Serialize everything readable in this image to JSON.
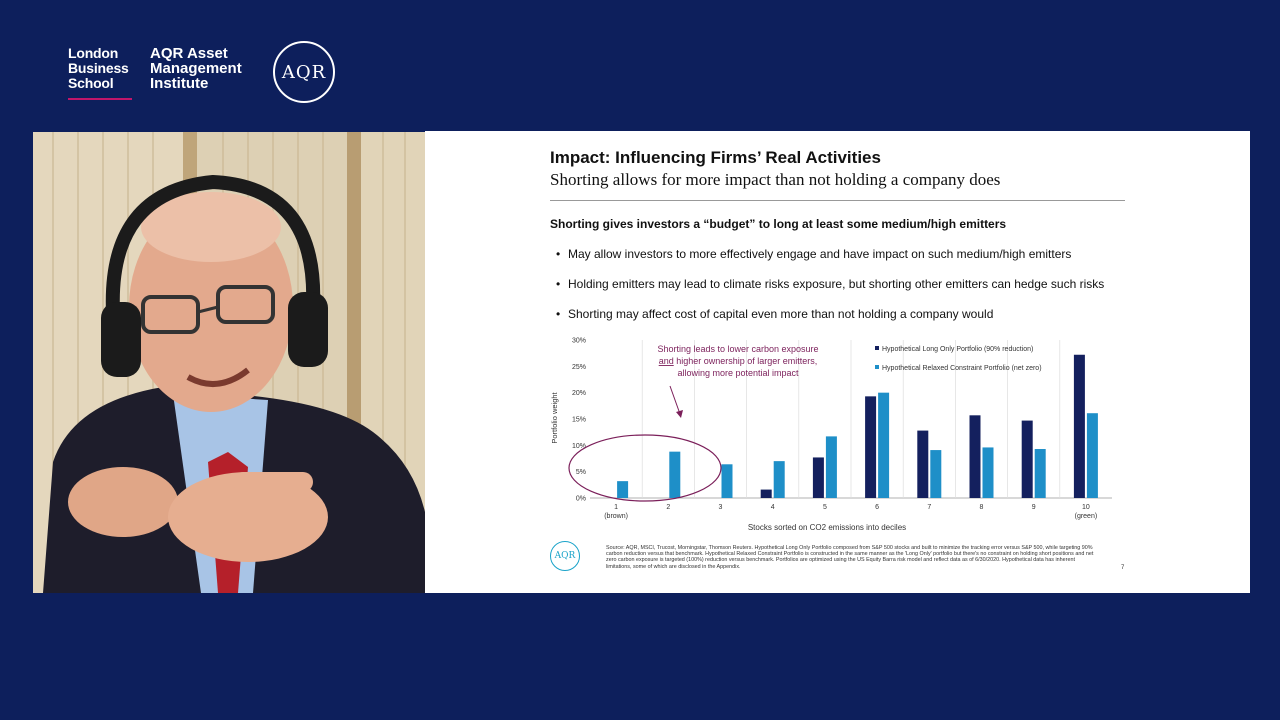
{
  "branding": {
    "lbs_lines": [
      "London",
      "Business",
      "School"
    ],
    "aqr_lines": [
      "AQR Asset",
      "Management",
      "Institute"
    ],
    "aqr_mark": "AQR"
  },
  "slide": {
    "title": "Impact: Influencing Firms’ Real Activities",
    "subtitle": "Shorting allows for more impact than not holding a company does",
    "heading": "Shorting gives investors a “budget” to long at least some medium/high emitters",
    "bullets": [
      "May allow investors to more effectively engage and have impact on such medium/high emitters",
      "Holding emitters may lead to climate risks exposure, but shorting other emitters can hedge such risks",
      "Shorting may affect cost of capital even more than not holding a company would"
    ],
    "footer_logo": "AQR",
    "source_note": "Source: AQR, MSCI, Trucost, Morningstar, Thomson Reuters. Hypothetical Long Only Portfolio composed from S&P 500 stocks and built to minimize the tracking error versus S&P 500, while targeting 90% carbon reduction versus that benchmark. Hypothetical Relaxed Constraint Portfolio is constructed in the same manner as the 'Long Only' portfolio but there's no constraint on holding short positions and net zero carbon exposure is targeted (100%) reduction versus benchmark. Portfolios are optimized using the US Equity Barra risk model and reflect data as of 6/30/2020. Hypothetical data has inherent limitations, some of which are disclosed in the Appendix.",
    "page_number": "7"
  },
  "chart_data": {
    "type": "bar",
    "categories": [
      "1",
      "2",
      "3",
      "4",
      "5",
      "6",
      "7",
      "8",
      "9",
      "10"
    ],
    "category_sublabels": [
      "(brown)",
      "",
      "",
      "",
      "",
      "",
      "",
      "",
      "",
      "(green)"
    ],
    "series": [
      {
        "name": "Hypothetical Long Only Portfolio (90% reduction)",
        "color": "#14205e",
        "values": [
          0,
          0,
          0,
          1.6,
          7.7,
          19.3,
          12.8,
          15.7,
          14.7,
          27.2
        ]
      },
      {
        "name": "Hypothetical Relaxed Constraint Portfolio (net zero)",
        "color": "#1e8fc8",
        "values": [
          3.2,
          8.8,
          6.4,
          7.0,
          11.7,
          20.0,
          9.1,
          9.6,
          9.3,
          16.1
        ]
      }
    ],
    "ylim": [
      0,
      30
    ],
    "yticks": [
      "0%",
      "5%",
      "10%",
      "15%",
      "20%",
      "25%",
      "30%"
    ],
    "ylabel": "Portfolio weight",
    "xlabel": "Stocks sorted on CO2 emissions into deciles",
    "grid": "vertical separators",
    "legend": "top-right",
    "annotation": {
      "line1": "Shorting leads to lower carbon exposure",
      "line2_underlined": "and",
      "line2_rest": " higher ownership of larger emitters,",
      "line3": "allowing more potential impact",
      "color": "#7b1f5a"
    }
  }
}
